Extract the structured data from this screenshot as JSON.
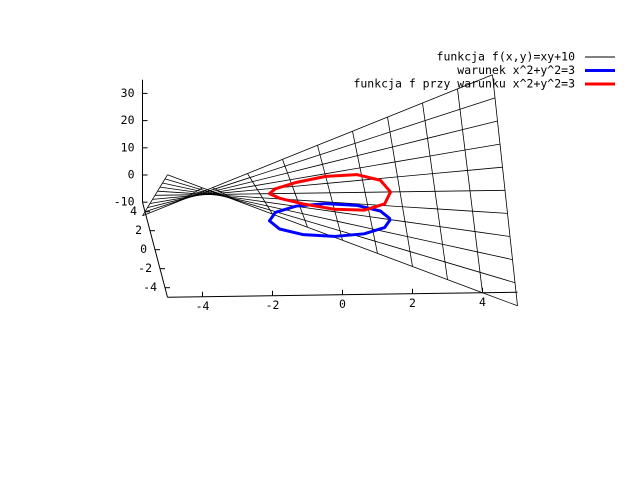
{
  "chart_data": {
    "type": "surface3d",
    "xlim": [
      -5,
      5
    ],
    "ylim": [
      -5,
      5
    ],
    "zlim": [
      -10,
      35
    ],
    "xticks": [
      -4,
      -2,
      0,
      2,
      4
    ],
    "yticks": [
      -4,
      -2,
      0,
      2,
      4
    ],
    "zticks": [
      -10,
      0,
      10,
      20,
      30
    ],
    "legend": "top-right",
    "surface": {
      "name": "funkcja f(x,y)=xy+10",
      "color": "#000000",
      "x": [
        -5,
        -4,
        -3,
        -2,
        -1,
        0,
        1,
        2,
        3,
        4,
        5
      ],
      "y": [
        -5,
        -4,
        -3,
        -2,
        -1,
        0,
        1,
        2,
        3,
        4,
        5
      ],
      "z": [
        [
          35,
          30,
          25,
          20,
          15,
          10,
          5,
          0,
          -5,
          -10,
          -15
        ],
        [
          30,
          26,
          22,
          18,
          14,
          10,
          6,
          2,
          -2,
          -6,
          -10
        ],
        [
          25,
          22,
          19,
          16,
          13,
          10,
          7,
          4,
          1,
          -2,
          -5
        ],
        [
          20,
          18,
          16,
          14,
          12,
          10,
          8,
          6,
          4,
          2,
          0
        ],
        [
          15,
          14,
          13,
          12,
          11,
          10,
          9,
          8,
          7,
          6,
          5
        ],
        [
          10,
          10,
          10,
          10,
          10,
          10,
          10,
          10,
          10,
          10,
          10
        ],
        [
          5,
          6,
          7,
          8,
          9,
          10,
          11,
          12,
          13,
          14,
          15
        ],
        [
          0,
          2,
          4,
          6,
          8,
          10,
          12,
          14,
          16,
          18,
          20
        ],
        [
          -5,
          -2,
          1,
          4,
          7,
          10,
          13,
          16,
          19,
          22,
          25
        ],
        [
          -10,
          -6,
          -2,
          2,
          6,
          10,
          14,
          18,
          22,
          26,
          30
        ],
        [
          -15,
          -10,
          -5,
          0,
          5,
          10,
          15,
          20,
          25,
          30,
          35
        ]
      ]
    },
    "series": [
      {
        "name": "warunek x^2+y^2=3",
        "color": "#0000ff",
        "x": [
          1.73,
          1.5,
          0.87,
          0,
          -0.87,
          -1.5,
          -1.73,
          -1.5,
          -0.87,
          0,
          0.87,
          1.5,
          1.73
        ],
        "y": [
          0,
          0.87,
          1.5,
          1.73,
          1.5,
          0.87,
          0,
          -0.87,
          -1.5,
          -1.73,
          -1.5,
          -0.87,
          0
        ],
        "z": [
          0,
          0,
          0,
          0,
          0,
          0,
          0,
          0,
          0,
          0,
          0,
          0,
          0
        ]
      },
      {
        "name": "funkcja f przy warunku x^2+y^2=3",
        "color": "#ff0000",
        "x": [
          1.73,
          1.5,
          0.87,
          0,
          -0.87,
          -1.5,
          -1.73,
          -1.5,
          -0.87,
          0,
          0.87,
          1.5,
          1.73
        ],
        "y": [
          0,
          0.87,
          1.5,
          1.73,
          1.5,
          0.87,
          0,
          -0.87,
          -1.5,
          -1.73,
          -1.5,
          -0.87,
          0
        ],
        "z": [
          10,
          11.3,
          11.3,
          10,
          8.7,
          8.7,
          10,
          11.3,
          11.3,
          10,
          8.7,
          8.7,
          10
        ]
      }
    ]
  }
}
